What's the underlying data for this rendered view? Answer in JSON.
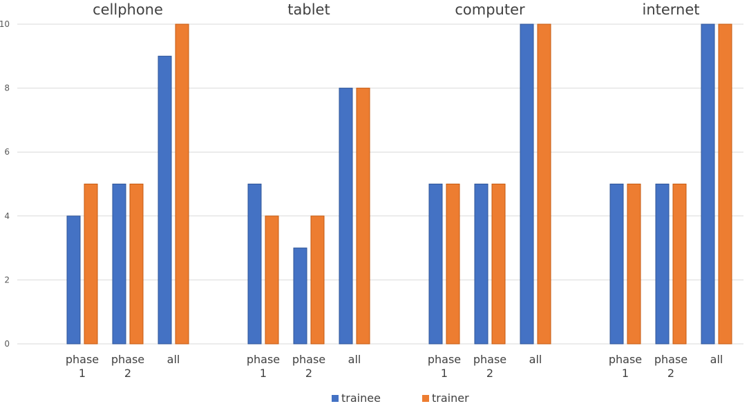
{
  "chart_data": {
    "type": "bar",
    "ylim": [
      0,
      10
    ],
    "yticks": [
      0,
      2,
      4,
      6,
      8,
      10
    ],
    "grid": true,
    "legend_position": "bottom",
    "series_colors": {
      "trainee": "#4472C4",
      "trainer": "#ED7D31"
    },
    "legend": [
      {
        "name": "trainee",
        "color": "#4472C4"
      },
      {
        "name": "trainer",
        "color": "#ED7D31"
      }
    ],
    "panels": [
      {
        "title": "cellphone",
        "categories": [
          [
            "phase",
            "1"
          ],
          [
            "phase",
            "2"
          ],
          [
            "all"
          ]
        ],
        "series": [
          {
            "name": "trainee",
            "values": [
              4,
              5,
              9
            ]
          },
          {
            "name": "trainer",
            "values": [
              5,
              5,
              10
            ]
          }
        ]
      },
      {
        "title": "tablet",
        "categories": [
          [
            "phase",
            "1"
          ],
          [
            "phase",
            "2"
          ],
          [
            "all"
          ]
        ],
        "series": [
          {
            "name": "trainee",
            "values": [
              5,
              3,
              8
            ]
          },
          {
            "name": "trainer",
            "values": [
              4,
              4,
              8
            ]
          }
        ]
      },
      {
        "title": "computer",
        "categories": [
          [
            "phase",
            "1"
          ],
          [
            "phase",
            "2"
          ],
          [
            "all"
          ]
        ],
        "series": [
          {
            "name": "trainee",
            "values": [
              5,
              5,
              10
            ]
          },
          {
            "name": "trainer",
            "values": [
              5,
              5,
              10
            ]
          }
        ]
      },
      {
        "title": "internet",
        "categories": [
          [
            "phase",
            "1"
          ],
          [
            "phase",
            "2"
          ],
          [
            "all"
          ]
        ],
        "series": [
          {
            "name": "trainee",
            "values": [
              5,
              5,
              10
            ]
          },
          {
            "name": "trainer",
            "values": [
              5,
              5,
              10
            ]
          }
        ]
      }
    ]
  }
}
